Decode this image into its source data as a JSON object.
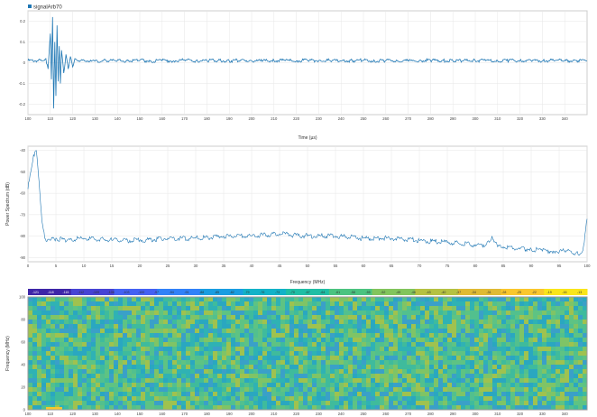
{
  "chart_data": [
    {
      "type": "line",
      "legend": {
        "label": "signalArb70",
        "color": "#1f77b4",
        "position": "top-left"
      },
      "xlabel": "Time (µs)",
      "ylabel": "",
      "xlim": [
        100,
        350
      ],
      "ylim": [
        -0.25,
        0.25
      ],
      "xticks": [
        100,
        110,
        120,
        130,
        140,
        150,
        160,
        170,
        180,
        190,
        200,
        210,
        220,
        230,
        240,
        250,
        260,
        270,
        280,
        290,
        300,
        310,
        320,
        330,
        340
      ],
      "yticks": [
        -0.2,
        -0.1,
        0,
        0.1,
        0.2
      ],
      "grid": true,
      "series": [
        {
          "color": "#1f77b4",
          "x": [
            100,
            106,
            108,
            109,
            110,
            110.5,
            111,
            111.5,
            112,
            112.5,
            113,
            113.5,
            114,
            114.5,
            115,
            116,
            117,
            118,
            119,
            120,
            121,
            122,
            124,
            126,
            128,
            130,
            135,
            140,
            145,
            150,
            155,
            160,
            165,
            170,
            175,
            180,
            185,
            190,
            195,
            200,
            205,
            210,
            215,
            220,
            225,
            230,
            235,
            240,
            245,
            250,
            255,
            260,
            265,
            270,
            275,
            280,
            285,
            290,
            295,
            300,
            305,
            310,
            315,
            320,
            325,
            330,
            335,
            340,
            345,
            350
          ],
          "y": [
            0.01,
            0.01,
            0.02,
            -0.03,
            0.14,
            -0.08,
            0.22,
            -0.22,
            0.1,
            -0.16,
            0.18,
            -0.09,
            0.08,
            -0.1,
            0.06,
            -0.05,
            0.04,
            -0.03,
            0.03,
            -0.02,
            0.02,
            0.01,
            0.015,
            0.005,
            0.012,
            0.008,
            0.01,
            0.011,
            0.009,
            0.012,
            0.008,
            0.01,
            0.009,
            0.013,
            0.008,
            0.011,
            0.01,
            0.009,
            0.012,
            0.01,
            0.008,
            0.011,
            0.01,
            0.009,
            0.012,
            0.01,
            0.011,
            0.009,
            0.01,
            0.012,
            0.008,
            0.01,
            0.011,
            0.009,
            0.01,
            0.012,
            0.01,
            0.009,
            0.011,
            0.01,
            0.012,
            0.009,
            0.01,
            0.011,
            0.01,
            0.009,
            0.012,
            0.01,
            0.011,
            0.01
          ]
        }
      ]
    },
    {
      "type": "line",
      "xlabel": "Frequency (MHz)",
      "ylabel": "Power Spectrum (dB)",
      "xlim": [
        0,
        100
      ],
      "ylim": [
        -92,
        -38
      ],
      "xticks": [
        0,
        5,
        10,
        15,
        20,
        25,
        30,
        35,
        40,
        45,
        50,
        55,
        60,
        65,
        70,
        75,
        80,
        85,
        90,
        95,
        100
      ],
      "yticks": [
        -90,
        -80,
        -70,
        -60,
        -50,
        -40
      ],
      "grid": true,
      "series": [
        {
          "color": "#1f77b4",
          "x": [
            0,
            0.5,
            1,
            1.5,
            2,
            2.5,
            3,
            4,
            5,
            7,
            10,
            15,
            20,
            25,
            30,
            35,
            40,
            45,
            50,
            55,
            60,
            65,
            70,
            75,
            80,
            82,
            83,
            84,
            85,
            88,
            90,
            92,
            94,
            96,
            98,
            99,
            99.5,
            100
          ],
          "y": [
            -58,
            -50,
            -42,
            -40,
            -55,
            -73,
            -81,
            -82,
            -81,
            -82,
            -81,
            -82,
            -82,
            -81,
            -81,
            -80,
            -80,
            -79,
            -80,
            -80,
            -81,
            -81,
            -82,
            -83,
            -84,
            -84,
            -80,
            -85,
            -85,
            -86,
            -86,
            -87,
            -87,
            -87,
            -88,
            -88,
            -83,
            -72
          ]
        }
      ]
    },
    {
      "type": "heatmap",
      "xlabel": "",
      "ylabel": "Frequency (MHz)",
      "xlim": [
        100,
        350
      ],
      "ylim": [
        0,
        100
      ],
      "xticks": [
        100,
        110,
        120,
        130,
        140,
        150,
        160,
        170,
        180,
        190,
        200,
        210,
        220,
        230,
        240,
        250,
        260,
        270,
        280,
        290,
        300,
        310,
        320,
        330,
        340
      ],
      "yticks": [
        0,
        20,
        40,
        60,
        80,
        100
      ],
      "colorbar": {
        "position": "top",
        "labels": [
          "-121",
          "-118",
          "-115",
          "-112",
          "-109",
          "-106",
          "-103",
          "-100",
          "-97",
          "-94",
          "-91",
          "-88",
          "-85",
          "-82",
          "-79",
          "-76",
          "-73",
          "-70",
          "-67",
          "-64",
          "-61",
          "-58",
          "-55",
          "-52",
          "-49",
          "-46",
          "-43",
          "-40",
          "-37",
          "-34",
          "-31",
          "-28",
          "-25",
          "-22",
          "-19",
          "-16",
          "-13"
        ],
        "colors": [
          "#3e26a8",
          "#4743d4",
          "#4461f3",
          "#3181f8",
          "#1a9de1",
          "#12b2c8",
          "#1fbea5",
          "#4bc380",
          "#82c45c",
          "#b5c142",
          "#dfba34",
          "#f9c72d",
          "#f9e51a"
        ]
      },
      "description_values": {
        "dominant_level": "-85"
      }
    }
  ],
  "ui": {
    "background": "#ffffff",
    "grid_color": "#e6e6e6",
    "axis_color": "#444444"
  }
}
